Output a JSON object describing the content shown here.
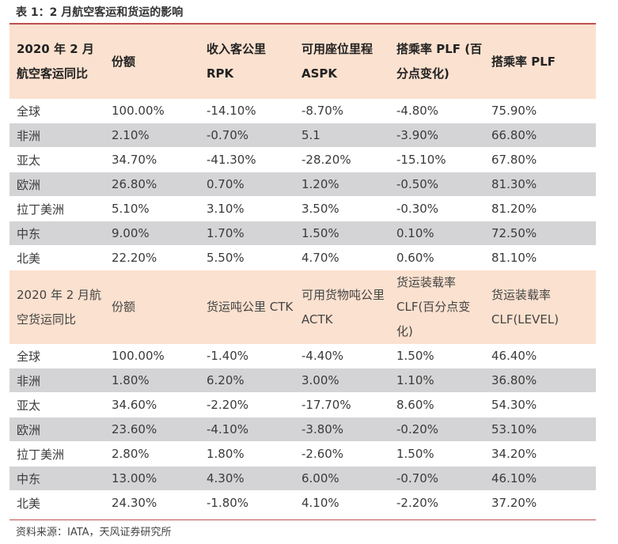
{
  "title": "表 1：2 月航空客运和货运的影响",
  "passenger": {
    "headers": [
      "2020 年 2 月航空客运同比",
      "份额",
      "收入客公里 RPK",
      "可用座位里程 ASPK",
      "搭乘率 PLF (百分点变化)",
      "搭乘率 PLF"
    ],
    "rows": [
      [
        "全球",
        "100.00%",
        "-14.10%",
        "-8.70%",
        "-4.80%",
        "75.90%"
      ],
      [
        "非洲",
        "2.10%",
        "-0.70%",
        "5.1",
        "-3.90%",
        "66.80%"
      ],
      [
        "亚太",
        "34.70%",
        "-41.30%",
        "-28.20%",
        "-15.10%",
        "67.80%"
      ],
      [
        "欧洲",
        "26.80%",
        "0.70%",
        "1.20%",
        "-0.50%",
        "81.30%"
      ],
      [
        "拉丁美洲",
        "5.10%",
        "3.10%",
        "3.50%",
        "-0.30%",
        "81.20%"
      ],
      [
        "中东",
        "9.00%",
        "1.70%",
        "1.50%",
        "0.10%",
        "72.50%"
      ],
      [
        "北美",
        "22.20%",
        "5.50%",
        "4.70%",
        "0.60%",
        "81.10%"
      ]
    ]
  },
  "cargo": {
    "headers": [
      "2020 年 2 月航空货运同比",
      "份额",
      "货运吨公里 CTK",
      "可用货物吨公里 ACTK",
      "货运装载率 CLF(百分点变化)",
      "货运装载率 CLF(LEVEL)"
    ],
    "rows": [
      [
        "全球",
        "100.00%",
        "-1.40%",
        "-4.40%",
        "1.50%",
        "46.40%"
      ],
      [
        "非洲",
        "1.80%",
        "6.20%",
        "3.00%",
        "1.10%",
        "36.80%"
      ],
      [
        "亚太",
        "34.60%",
        "-2.20%",
        "-17.70%",
        "8.60%",
        "54.30%"
      ],
      [
        "欧洲",
        "23.60%",
        "-4.10%",
        "-3.80%",
        "-0.20%",
        "53.10%"
      ],
      [
        "拉丁美洲",
        "2.80%",
        "1.80%",
        "-2.60%",
        "1.50%",
        "34.20%"
      ],
      [
        "中东",
        "13.00%",
        "4.30%",
        "6.00%",
        "-0.70%",
        "46.10%"
      ],
      [
        "北美",
        "24.30%",
        "-1.80%",
        "4.10%",
        "-2.20%",
        "37.20%"
      ]
    ]
  },
  "source": "资料来源：IATA，天风证券研究所"
}
